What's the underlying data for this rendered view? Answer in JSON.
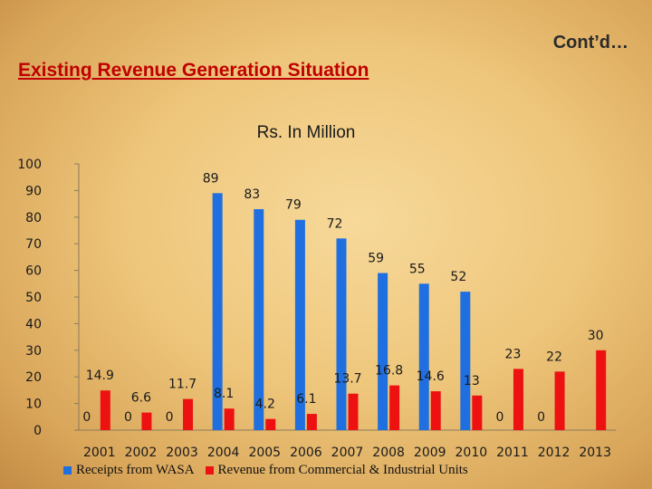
{
  "slide": {
    "corner_label": "Cont’d…",
    "title": "Existing Revenue Generation Situation"
  },
  "colors": {
    "wasa": "#1f6fe0",
    "commercial": "#ee1111",
    "title_red": "#c00000"
  },
  "chart_data": {
    "type": "bar",
    "title": "Rs. In Million",
    "xlabel": "",
    "ylabel": "",
    "ylim": [
      0,
      100
    ],
    "yticks": [
      0,
      10,
      20,
      30,
      40,
      50,
      60,
      70,
      80,
      90,
      100
    ],
    "grid": false,
    "legend_position": "bottom",
    "categories": [
      "2001",
      "2002",
      "2003",
      "2004",
      "2005",
      "2006",
      "2007",
      "2008",
      "2009",
      "2010",
      "2011",
      "2012",
      "2013"
    ],
    "series": [
      {
        "name": "Receipts from WASA",
        "values": [
          0,
          0,
          0,
          89,
          83,
          79,
          72,
          59,
          55,
          52,
          0,
          0,
          null
        ],
        "labels": [
          "0",
          "0",
          "0",
          "89",
          "83",
          "79",
          "72",
          "59",
          "55",
          "52",
          "0",
          "0",
          ""
        ]
      },
      {
        "name": "Revenue from Commercial & Industrial Units",
        "values": [
          14.9,
          6.6,
          11.7,
          8.1,
          4.2,
          6.1,
          13.7,
          16.8,
          14.6,
          13,
          23,
          22,
          30
        ],
        "labels": [
          "14.9",
          "6.6",
          "11.7",
          "8.1",
          "4.2",
          "6.1",
          "13.7",
          "16.8",
          "14.6",
          "13",
          "23",
          "22",
          "30"
        ]
      }
    ]
  }
}
